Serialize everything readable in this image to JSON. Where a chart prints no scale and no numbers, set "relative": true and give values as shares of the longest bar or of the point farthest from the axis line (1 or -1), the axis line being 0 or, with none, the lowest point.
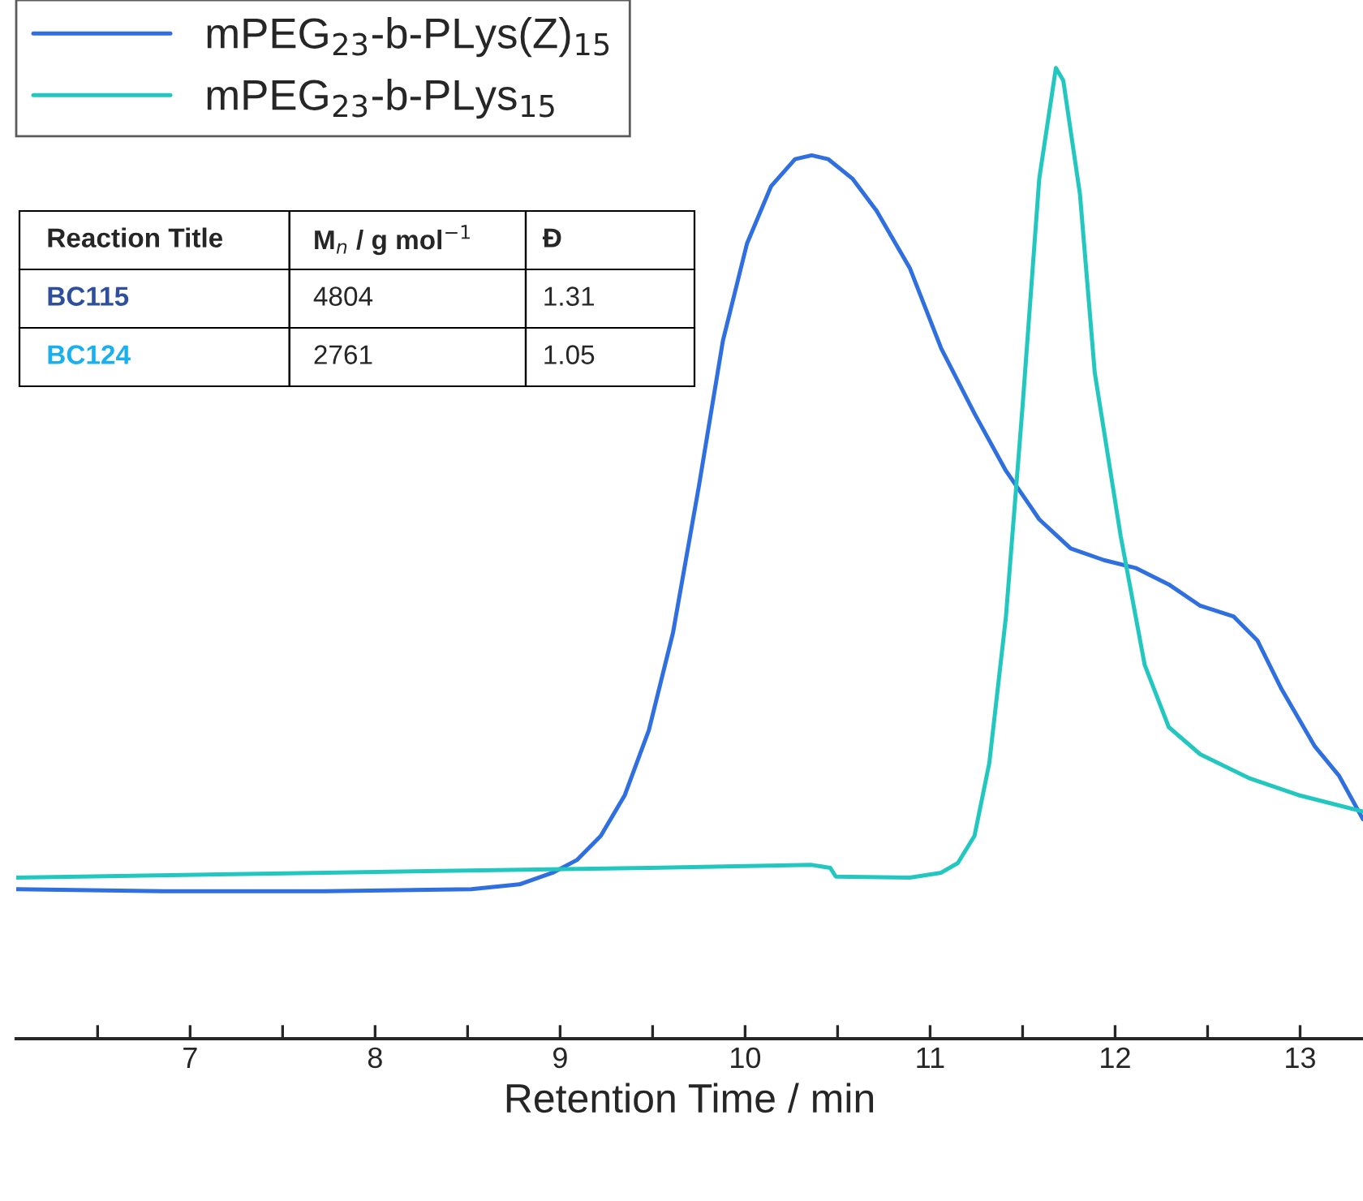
{
  "chart_data": {
    "type": "line",
    "relative": true,
    "xlabel": "Retention Time / min",
    "xlim": [
      6.06,
      13.34
    ],
    "xticks": [
      {
        "value": 6.5,
        "label": null
      },
      7,
      {
        "value": 7.5,
        "label": null
      },
      8,
      {
        "value": 8.5,
        "label": null
      },
      9,
      {
        "value": 9.5,
        "label": null
      },
      10,
      {
        "value": 10.5,
        "label": null
      },
      11,
      {
        "value": 11.5,
        "label": null
      },
      12,
      {
        "value": 12.5,
        "label": null
      },
      13
    ],
    "legend": "top left",
    "grid": false,
    "tick_labels": "x",
    "series": [
      {
        "name": "mPEG$_{23}$-b-PLys(Z)$_{15}$",
        "color": "#2f6fe0",
        "x": [
          6.06,
          6.85,
          7.73,
          8.52,
          8.78,
          8.96,
          9.09,
          9.22,
          9.35,
          9.48,
          9.61,
          9.75,
          9.88,
          10.01,
          10.14,
          10.27,
          10.36,
          10.45,
          10.58,
          10.71,
          10.89,
          11.06,
          11.24,
          11.41,
          11.59,
          11.76,
          11.94,
          12.11,
          12.29,
          12.46,
          12.64,
          12.77,
          12.9,
          13.08,
          13.21,
          13.34
        ],
        "values": [
          0.154,
          0.152,
          0.152,
          0.154,
          0.159,
          0.171,
          0.184,
          0.209,
          0.251,
          0.318,
          0.418,
          0.569,
          0.719,
          0.819,
          0.878,
          0.906,
          0.91,
          0.906,
          0.886,
          0.853,
          0.794,
          0.711,
          0.644,
          0.585,
          0.535,
          0.505,
          0.493,
          0.485,
          0.468,
          0.446,
          0.435,
          0.41,
          0.36,
          0.301,
          0.271,
          0.226
        ]
      },
      {
        "name": "mPEG$_{23}$-b-PLys$_{15}$",
        "color": "#22c8c0",
        "x": [
          6.06,
          7.73,
          9.48,
          10.36,
          10.46,
          10.49,
          10.89,
          11.06,
          11.15,
          11.24,
          11.32,
          11.41,
          11.5,
          11.59,
          11.68,
          11.72,
          11.81,
          11.89,
          12.03,
          12.16,
          12.29,
          12.46,
          12.73,
          12.99,
          13.34
        ],
        "values": [
          0.166,
          0.171,
          0.176,
          0.179,
          0.176,
          0.167,
          0.166,
          0.171,
          0.181,
          0.209,
          0.284,
          0.435,
          0.652,
          0.886,
          1.0,
          0.987,
          0.87,
          0.686,
          0.518,
          0.385,
          0.321,
          0.293,
          0.268,
          0.251,
          0.234
        ]
      }
    ],
    "annotations": [
      "Reaction Title",
      "M$_{n}$ / g mol$^{−1}$",
      "Đ",
      "BC115",
      "4804",
      "1.31",
      "BC124",
      "2761",
      "1.05"
    ]
  }
}
